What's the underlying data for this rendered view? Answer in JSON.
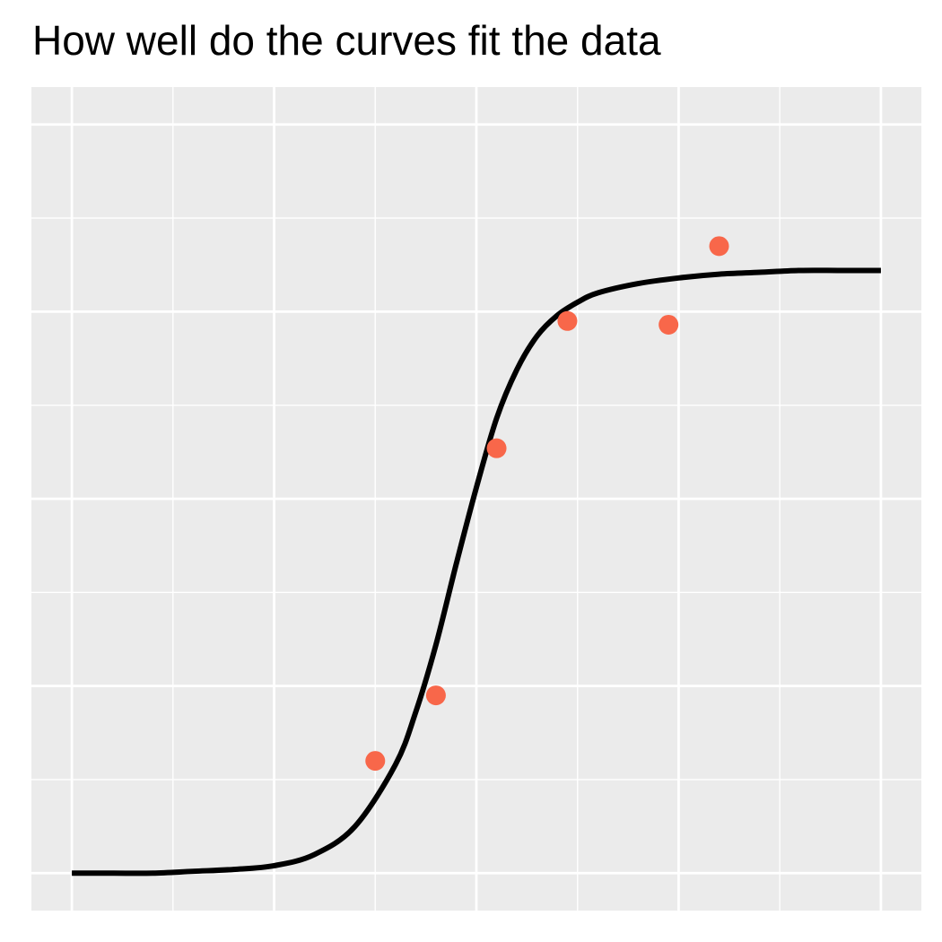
{
  "colors": {
    "panel_bg": "#EBEBEB",
    "grid": "#FFFFFF",
    "curve": "#000000",
    "points": "#F8674A"
  },
  "chart_data": {
    "type": "scatter",
    "title": "How well do the curves fit the data",
    "xlabel": "",
    "ylabel": "",
    "grid": true,
    "axis_text_visible": false,
    "xlim": [
      -0.2,
      4.2
    ],
    "ylim": [
      -0.2,
      4.2
    ],
    "x_major_breaks": [
      0,
      1,
      2,
      3,
      4
    ],
    "y_major_breaks": [
      0,
      1,
      2,
      3,
      4
    ],
    "series": [
      {
        "kind": "points",
        "x": [
          1.5,
          1.8,
          2.1,
          2.45,
          2.95,
          3.2
        ],
        "y": [
          0.6,
          0.95,
          2.27,
          2.95,
          2.93,
          3.35
        ]
      },
      {
        "kind": "line",
        "x": [
          0,
          0.2,
          0.4,
          0.6,
          0.8,
          1.0,
          1.2,
          1.4,
          1.6,
          1.7,
          1.8,
          1.9,
          2.0,
          2.1,
          2.2,
          2.3,
          2.4,
          2.5,
          2.6,
          2.8,
          3.0,
          3.2,
          3.4,
          3.6,
          3.8,
          4.0
        ],
        "y": [
          0.0,
          0.0,
          0.0,
          0.01,
          0.02,
          0.04,
          0.1,
          0.25,
          0.58,
          0.86,
          1.22,
          1.65,
          2.06,
          2.43,
          2.69,
          2.87,
          2.98,
          3.05,
          3.1,
          3.15,
          3.18,
          3.2,
          3.21,
          3.22,
          3.22,
          3.22
        ]
      }
    ]
  }
}
